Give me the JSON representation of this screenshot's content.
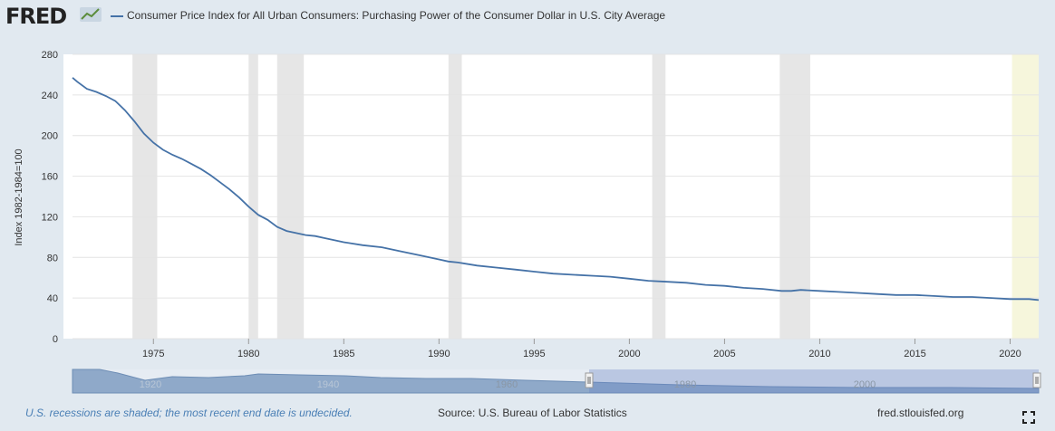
{
  "header": {
    "logo_text": "FRED",
    "legend_label": "Consumer Price Index for All Urban Consumers: Purchasing Power of the Consumer Dollar in U.S. City Average",
    "series_color": "#4572a7"
  },
  "footer": {
    "note": "U.S. recessions are shaded; the most recent end date is undecided.",
    "source": "Source: U.S. Bureau of Labor Statistics",
    "site": "fred.stlouisfed.org"
  },
  "chart_data": {
    "type": "line",
    "title": "Consumer Price Index for All Urban Consumers: Purchasing Power of the Consumer Dollar in U.S. City Average",
    "xlabel": "",
    "ylabel": "Index 1982-1984=100",
    "xlim": [
      1970.75,
      2021.5
    ],
    "ylim": [
      0,
      280
    ],
    "yticks": [
      0,
      40,
      80,
      120,
      160,
      200,
      240,
      280
    ],
    "xticks": [
      1975,
      1980,
      1985,
      1990,
      1995,
      2000,
      2005,
      2010,
      2015,
      2020
    ],
    "grid": true,
    "recessions": [
      [
        1973.9,
        1975.2
      ],
      [
        1980.0,
        1980.5
      ],
      [
        1981.5,
        1982.9
      ],
      [
        1990.5,
        1991.2
      ],
      [
        2001.2,
        2001.9
      ],
      [
        2007.9,
        2009.5
      ],
      [
        2020.1,
        2021.5
      ]
    ],
    "series": [
      {
        "name": "Purchasing Power of the Consumer Dollar",
        "color": "#4572a7",
        "x": [
          1970.75,
          1971.0,
          1971.5,
          1972.0,
          1972.5,
          1973.0,
          1973.5,
          1974.0,
          1974.5,
          1975.0,
          1975.5,
          1976.0,
          1976.5,
          1977.0,
          1977.5,
          1978.0,
          1978.5,
          1979.0,
          1979.5,
          1980.0,
          1980.5,
          1981.0,
          1981.5,
          1982.0,
          1982.5,
          1983.0,
          1983.5,
          1984.0,
          1985.0,
          1986.0,
          1987.0,
          1988.0,
          1989.0,
          1990.0,
          1990.5,
          1991.0,
          1992.0,
          1993.0,
          1994.0,
          1995.0,
          1996.0,
          1997.0,
          1998.0,
          1999.0,
          2000.0,
          2001.0,
          2002.0,
          2003.0,
          2004.0,
          2005.0,
          2006.0,
          2007.0,
          2008.0,
          2008.5,
          2009.0,
          2010.0,
          2011.0,
          2012.0,
          2013.0,
          2014.0,
          2015.0,
          2016.0,
          2017.0,
          2018.0,
          2019.0,
          2020.0,
          2021.0,
          2021.5
        ],
        "y": [
          257,
          253,
          246,
          243,
          239,
          234,
          225,
          214,
          202,
          193,
          186,
          181,
          177,
          172,
          167,
          161,
          154,
          147,
          139,
          130,
          122,
          117,
          110,
          106,
          104,
          102,
          101,
          99,
          95,
          92,
          90,
          86,
          82,
          78,
          76,
          75,
          72,
          70,
          68,
          66,
          64,
          63,
          62,
          61,
          59,
          57,
          56,
          55,
          53,
          52,
          50,
          49,
          47,
          47,
          48,
          47,
          46,
          45,
          44,
          43,
          43,
          42,
          41,
          41,
          40,
          39,
          39,
          38
        ]
      }
    ]
  },
  "navigator": {
    "labels": [
      "1960",
      "1980",
      "2000"
    ],
    "faint_labels": [
      "1920",
      "1940"
    ]
  }
}
